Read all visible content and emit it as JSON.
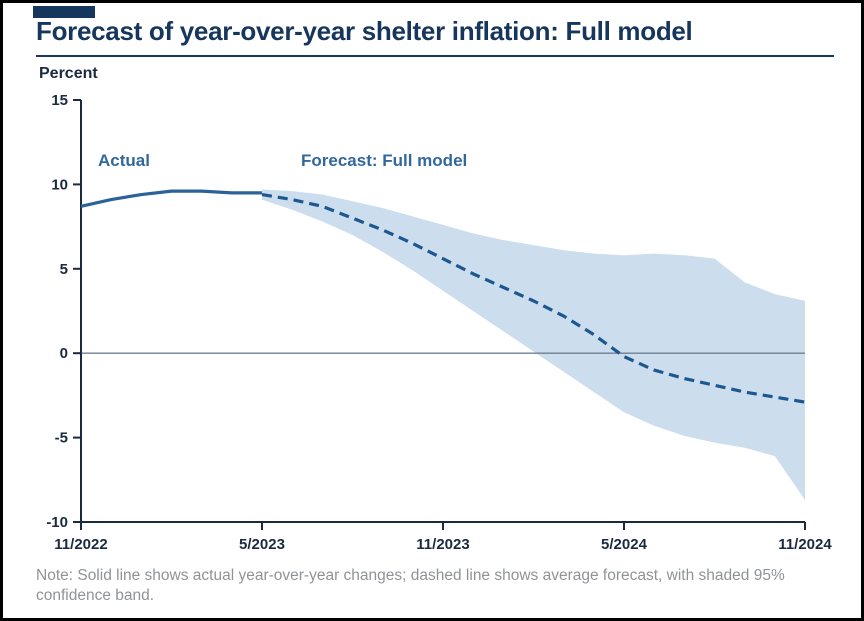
{
  "page": {
    "title": "Forecast of year-over-year shelter inflation: Full model",
    "y_axis_title": "Percent",
    "note": "Note: Solid line shows actual year-over-year changes; dashed line shows average forecast, with shaded 95% confidence band."
  },
  "labels": {
    "actual": "Actual",
    "forecast": "Forecast: Full model"
  },
  "colors": {
    "title_navy": "#17365d",
    "axis": "#1b2a41",
    "tick_label": "#1b2a41",
    "actual_line": "#2b6398",
    "forecast_line": "#1d578f",
    "band_fill": "#ccddee",
    "zero_line": "#6e7f95",
    "series_label": "#33689c",
    "note_gray": "#8f9396"
  },
  "chart_data": {
    "type": "line",
    "title": "Forecast of year-over-year shelter inflation: Full model",
    "ylabel": "Percent",
    "ylim": [
      -10,
      15
    ],
    "y_ticks": [
      15,
      10,
      5,
      0,
      -5,
      -10
    ],
    "x_tick_labels": [
      "11/2022",
      "5/2023",
      "11/2023",
      "5/2024",
      "11/2024"
    ],
    "x_tick_months": [
      0,
      6,
      12,
      18,
      24
    ],
    "x_range_months": [
      0,
      24
    ],
    "grid": false,
    "zero_line": true,
    "series": [
      {
        "name": "Actual",
        "style": "solid",
        "x_months": [
          0,
          1,
          2,
          3,
          4,
          5,
          6
        ],
        "values": [
          8.7,
          9.1,
          9.4,
          9.6,
          9.6,
          9.5,
          9.5
        ]
      },
      {
        "name": "Forecast: Full model",
        "style": "dashed",
        "x_months": [
          6,
          7,
          8,
          9,
          10,
          11,
          12,
          13,
          14,
          15,
          16,
          17,
          18,
          19,
          20,
          21,
          22,
          23,
          24
        ],
        "values": [
          9.4,
          9.1,
          8.7,
          8.0,
          7.3,
          6.5,
          5.6,
          4.7,
          3.9,
          3.1,
          2.2,
          1.1,
          -0.2,
          -1.0,
          -1.5,
          -1.9,
          -2.3,
          -2.6,
          -2.9
        ]
      }
    ],
    "band": {
      "name": "95% confidence band",
      "x_months": [
        6,
        7,
        8,
        9,
        10,
        11,
        12,
        13,
        14,
        15,
        16,
        17,
        18,
        19,
        20,
        21,
        22,
        23,
        24
      ],
      "upper": [
        9.7,
        9.6,
        9.4,
        9.0,
        8.6,
        8.1,
        7.6,
        7.1,
        6.7,
        6.4,
        6.1,
        5.9,
        5.8,
        5.9,
        5.8,
        5.6,
        4.2,
        3.5,
        3.1
      ],
      "lower": [
        9.1,
        8.5,
        7.8,
        7.0,
        6.0,
        4.9,
        3.7,
        2.5,
        1.3,
        0.1,
        -1.1,
        -2.3,
        -3.5,
        -4.3,
        -4.9,
        -5.3,
        -5.6,
        -6.1,
        -8.7
      ]
    }
  }
}
